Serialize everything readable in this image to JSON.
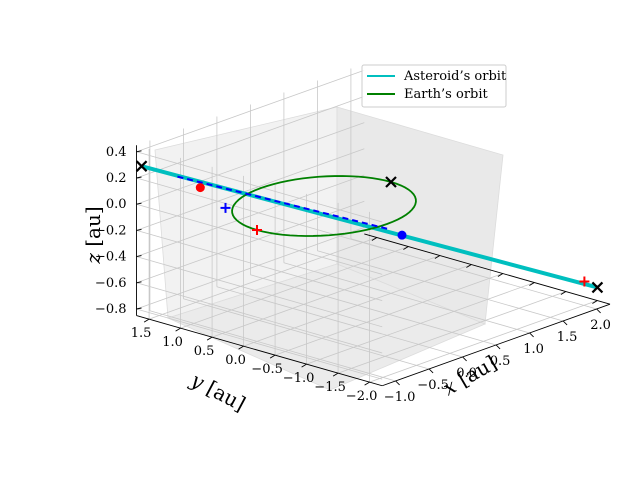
{
  "chart_data": {
    "type": "line3d",
    "title": "",
    "axes": {
      "x": {
        "label": "$x$ [au]",
        "label_parts": [
          "x",
          " [au]"
        ],
        "ticks": [
          -1.0,
          -0.5,
          0.0,
          0.5,
          1.0,
          1.5,
          2.0
        ],
        "tick_labels": [
          "−1.0",
          "−0.5",
          "0.0",
          "0.5",
          "1.0",
          "1.5",
          "2.0"
        ],
        "lim": [
          -1.2,
          2.2
        ]
      },
      "y": {
        "label": "$y$ [au]",
        "label_parts": [
          "y",
          " [au]"
        ],
        "ticks": [
          1.5,
          1.0,
          0.5,
          0.0,
          -0.5,
          -1.0,
          -1.5,
          -2.0
        ],
        "tick_labels": [
          "1.5",
          "1.0",
          "0.5",
          "0.0",
          "−0.5",
          "−1.0",
          "−1.5",
          "−2.0"
        ],
        "lim": [
          -2.2,
          1.7
        ]
      },
      "z": {
        "label": "$z$ [au]",
        "label_parts": [
          "z",
          " [au]"
        ],
        "ticks": [
          0.4,
          0.2,
          0.0,
          -0.2,
          -0.4,
          -0.6,
          -0.8
        ],
        "tick_labels": [
          "0.4",
          "0.2",
          "0.0",
          "−0.2",
          "−0.4",
          "−0.6",
          "−0.8"
        ],
        "lim": [
          -0.85,
          0.45
        ]
      }
    },
    "grid": true,
    "legend": {
      "placement": "top-right",
      "entries": [
        {
          "name": "Asteroid’s orbit",
          "color": "#00bfbf"
        },
        {
          "name": "Earth’s orbit",
          "color": "#008000"
        }
      ]
    },
    "series": [
      {
        "name": "Asteroid’s orbit",
        "color": "#00bfbf",
        "style": "solid",
        "points": [
          [
            -1.5,
            1.3,
            0.4
          ],
          [
            2.2,
            -2.0,
            -0.75
          ]
        ]
      },
      {
        "name": "Earth’s orbit",
        "color": "#008000",
        "style": "solid",
        "shape": "circle",
        "center": [
          0,
          0,
          0
        ],
        "radius": 1.0
      },
      {
        "name": "",
        "color": "#0000ff",
        "style": "dashed",
        "points": [
          [
            -1.2,
            1.05,
            0.3
          ],
          [
            0.5,
            -0.5,
            -0.2
          ]
        ]
      }
    ],
    "markers": [
      {
        "symbol": "x",
        "color": "#000000",
        "point": [
          -1.5,
          1.3,
          0.4
        ]
      },
      {
        "symbol": "x",
        "color": "#000000",
        "point": [
          2.2,
          -2.0,
          -0.75
        ]
      },
      {
        "symbol": "x",
        "color": "#000000",
        "point": [
          1.0,
          0.0,
          0.0
        ]
      },
      {
        "symbol": "o",
        "color": "#ff0000",
        "point": [
          -1.0,
          0.9,
          0.2
        ]
      },
      {
        "symbol": "o",
        "color": "#0000ff",
        "point": [
          0.6,
          -0.6,
          -0.25
        ]
      },
      {
        "symbol": "+",
        "color": "#ff0000",
        "point": [
          -1.0,
          0.0,
          0.0
        ]
      },
      {
        "symbol": "+",
        "color": "#0000ff",
        "point": [
          -1.0,
          0.5,
          0.1
        ]
      },
      {
        "symbol": "+",
        "color": "#ff0000",
        "point": [
          2.1,
          -1.9,
          -0.7
        ]
      }
    ]
  }
}
